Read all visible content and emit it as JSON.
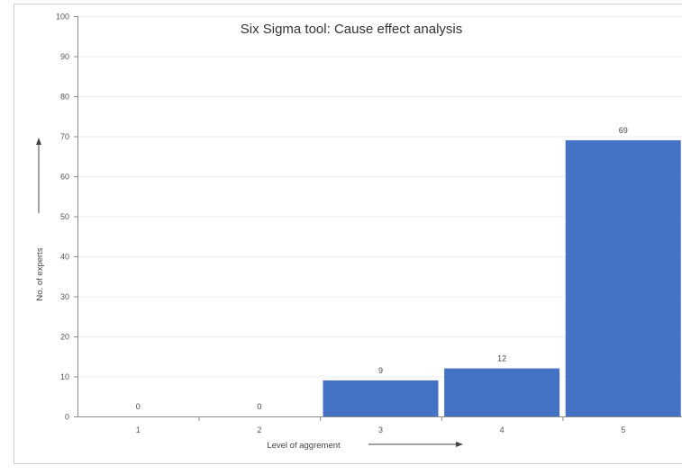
{
  "chart_data": {
    "type": "bar",
    "title": "Six Sigma tool: Cause effect analysis",
    "xlabel": "Level of aggrement",
    "ylabel": "No. of experts",
    "categories": [
      "1",
      "2",
      "3",
      "4",
      "5"
    ],
    "values": [
      0,
      0,
      9,
      12,
      69
    ],
    "ylim": [
      0,
      100
    ],
    "yticks": [
      0,
      10,
      20,
      30,
      40,
      50,
      60,
      70,
      80,
      90,
      100
    ],
    "bar_color": "#4472C4",
    "grid": true,
    "data_labels": true,
    "legend": "none"
  }
}
